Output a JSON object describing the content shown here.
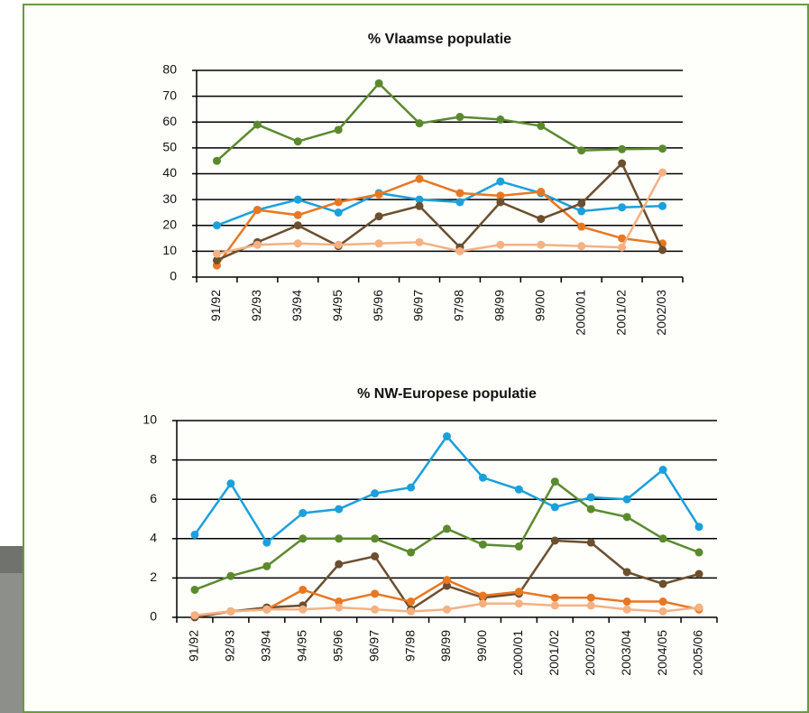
{
  "chart_data": [
    {
      "type": "line",
      "title": "% Vlaamse populatie",
      "categories": [
        "91/92",
        "92/93",
        "93/94",
        "94/95",
        "95/96",
        "96/97",
        "97/98",
        "98/99",
        "99/00",
        "2000/01",
        "2001/02",
        "2002/03"
      ],
      "series": [
        {
          "color": "#5b8a2e",
          "values": [
            45,
            59,
            52.5,
            57,
            75,
            59.5,
            62,
            61,
            58.5,
            49,
            49.5,
            49.7
          ]
        },
        {
          "color": "#1aa0db",
          "values": [
            20,
            26,
            30,
            25,
            32.5,
            30,
            29,
            37,
            32.5,
            25.5,
            27,
            27.5
          ]
        },
        {
          "color": "#e87722",
          "values": [
            4.5,
            26,
            24,
            29,
            32,
            38,
            32.5,
            31.5,
            33,
            19.5,
            15,
            13
          ]
        },
        {
          "color": "#6b4f2e",
          "values": [
            6.5,
            13.5,
            20,
            12,
            23.5,
            27.5,
            11.5,
            29,
            22.5,
            28.5,
            44,
            10.5
          ]
        },
        {
          "color": "#f4b183",
          "values": [
            9,
            12.5,
            13,
            12.5,
            13,
            13.5,
            10,
            12.5,
            12.5,
            12,
            11.5,
            40.5
          ]
        }
      ],
      "ylim": [
        0,
        80
      ],
      "yticks": [
        0,
        10,
        20,
        30,
        40,
        50,
        60,
        70,
        80
      ],
      "grid": true
    },
    {
      "type": "line",
      "title": "% NW-Europese populatie",
      "categories": [
        "91/92",
        "92/93",
        "93/94",
        "94/95",
        "95/96",
        "96/97",
        "97/98",
        "98/99",
        "99/00",
        "2000/01",
        "2001/02",
        "2002/03",
        "2003/04",
        "2004/05",
        "2005/06"
      ],
      "series": [
        {
          "color": "#1aa0db",
          "values": [
            4.2,
            6.8,
            3.8,
            5.3,
            5.5,
            6.3,
            6.6,
            9.2,
            7.1,
            6.5,
            5.6,
            6.1,
            6.0,
            7.5,
            4.6
          ]
        },
        {
          "color": "#5b8a2e",
          "values": [
            1.4,
            2.1,
            2.6,
            4.0,
            4.0,
            4.0,
            3.3,
            4.5,
            3.7,
            3.6,
            6.9,
            5.5,
            5.1,
            4.0,
            3.3
          ]
        },
        {
          "color": "#6b4f2e",
          "values": [
            0.0,
            0.3,
            0.5,
            0.6,
            2.7,
            3.1,
            0.4,
            1.6,
            1.0,
            1.2,
            3.9,
            3.8,
            2.3,
            1.7,
            2.2
          ]
        },
        {
          "color": "#e87722",
          "values": [
            0.1,
            0.3,
            0.4,
            1.4,
            0.8,
            1.2,
            0.8,
            1.9,
            1.1,
            1.3,
            1.0,
            1.0,
            0.8,
            0.8,
            0.4
          ]
        },
        {
          "color": "#f4b183",
          "values": [
            0.1,
            0.3,
            0.4,
            0.4,
            0.5,
            0.4,
            0.3,
            0.4,
            0.7,
            0.7,
            0.6,
            0.6,
            0.4,
            0.3,
            0.5
          ]
        }
      ],
      "ylim": [
        0,
        10
      ],
      "yticks": [
        0,
        2,
        4,
        6,
        8,
        10
      ],
      "grid": true
    }
  ]
}
